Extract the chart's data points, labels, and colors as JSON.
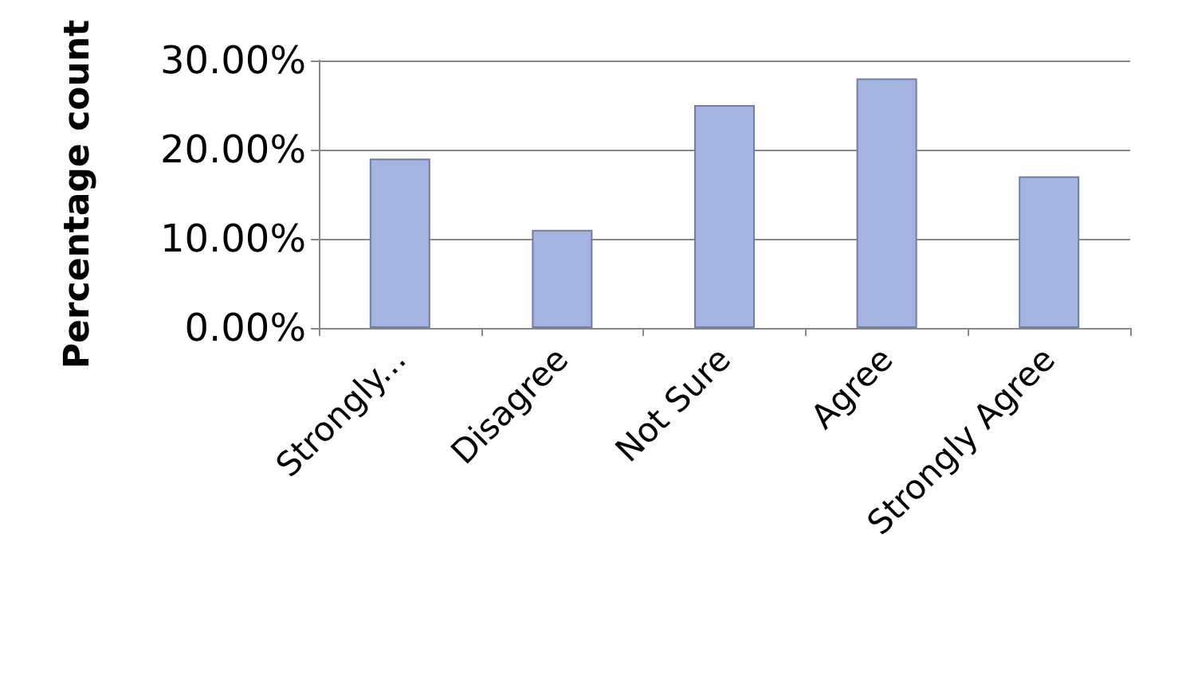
{
  "chart_data": {
    "type": "bar",
    "ylabel": "Percentage count",
    "categories": [
      "Strongly...",
      "Disagree",
      "Not Sure",
      "Agree",
      "Strongly Agree"
    ],
    "values": [
      19,
      11,
      25,
      28,
      17
    ],
    "color": "#a5b3e0",
    "ylim": [
      0,
      30
    ],
    "yticks": [
      {
        "value": 0,
        "label": "0.00%"
      },
      {
        "value": 10,
        "label": "10.00%"
      },
      {
        "value": 20,
        "label": "20.00%"
      },
      {
        "value": 30,
        "label": "30.00%"
      }
    ],
    "grid": true
  }
}
